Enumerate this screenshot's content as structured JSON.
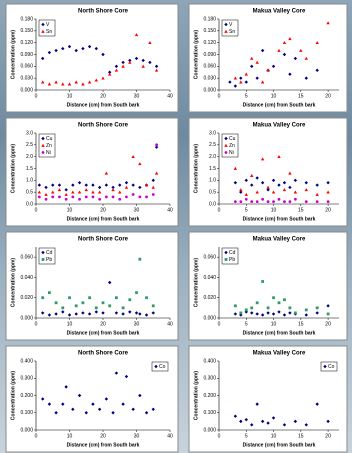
{
  "chart_data": [
    {
      "type": "scatter",
      "title": "North Shore Core",
      "x_label": "Distance (cm) from South bark",
      "y_label": "Concentration (ppm)",
      "legend": "upper left",
      "xlim": [
        0,
        40
      ],
      "xticks": [
        0,
        10,
        20,
        30,
        40
      ],
      "ylim": [
        0,
        0.18
      ],
      "yticks": [
        {
          "value": 0,
          "label": "0.000"
        },
        {
          "value": 0.03,
          "label": "0.030"
        },
        {
          "value": 0.06,
          "label": "0.060"
        },
        {
          "value": 0.09,
          "label": "0.090"
        },
        {
          "value": 0.12,
          "label": "0.120"
        },
        {
          "value": 0.15,
          "label": "0.150"
        },
        {
          "value": 0.18,
          "label": "0.180"
        }
      ],
      "series": [
        {
          "name": "V",
          "color": "#000080",
          "marker": "diamond",
          "x": [
            2,
            4,
            6,
            8,
            10,
            12,
            14,
            16,
            18,
            20,
            22,
            24,
            26,
            28,
            30,
            32,
            34,
            36
          ],
          "values": [
            0.08,
            0.095,
            0.1,
            0.105,
            0.11,
            0.1,
            0.105,
            0.11,
            0.105,
            0.09,
            0.045,
            0.06,
            0.07,
            0.075,
            0.08,
            0.075,
            0.07,
            0.06
          ]
        },
        {
          "name": "Sn",
          "color": "#ff0000",
          "marker": "triangle",
          "x": [
            2,
            4,
            6,
            8,
            10,
            12,
            14,
            16,
            18,
            20,
            22,
            24,
            26,
            28,
            30,
            32,
            34,
            36
          ],
          "values": [
            0.02,
            0.015,
            0.02,
            0.015,
            0.015,
            0.02,
            0.015,
            0.02,
            0.025,
            0.03,
            0.04,
            0.05,
            0.06,
            0.07,
            0.14,
            0.06,
            0.12,
            0.05
          ]
        }
      ]
    },
    {
      "type": "scatter",
      "title": "Makua Valley Core",
      "x_label": "Distance (cm) from South bark",
      "y_label": "Concentration (ppm)",
      "legend": "upper left",
      "xlim": [
        0,
        22
      ],
      "xticks": [
        0,
        5,
        10,
        15,
        20
      ],
      "ylim": [
        0,
        0.18
      ],
      "yticks": [
        {
          "value": 0,
          "label": "0.000"
        },
        {
          "value": 0.03,
          "label": "0.030"
        },
        {
          "value": 0.06,
          "label": "0.060"
        },
        {
          "value": 0.09,
          "label": "0.090"
        },
        {
          "value": 0.12,
          "label": "0.120"
        },
        {
          "value": 0.15,
          "label": "0.150"
        },
        {
          "value": 0.18,
          "label": "0.180"
        }
      ],
      "series": [
        {
          "name": "V",
          "color": "#000080",
          "marker": "diamond",
          "x": [
            2,
            3,
            4,
            5,
            6,
            7,
            8,
            9,
            10,
            12,
            13,
            14,
            16,
            18
          ],
          "values": [
            0.02,
            0.01,
            0.03,
            0.02,
            0.06,
            0.03,
            0.1,
            0.05,
            0.06,
            0.09,
            0.04,
            0.08,
            0.03,
            0.05
          ]
        },
        {
          "name": "Sn",
          "color": "#ff0000",
          "marker": "triangle",
          "x": [
            3,
            4,
            5,
            6,
            7,
            8,
            9,
            11,
            12,
            13,
            15,
            16,
            18,
            20
          ],
          "values": [
            0.03,
            0.02,
            0.04,
            0.08,
            0.07,
            0.02,
            0.05,
            0.1,
            0.12,
            0.13,
            0.1,
            0.08,
            0.12,
            0.17
          ]
        }
      ]
    },
    {
      "type": "scatter",
      "title": "North Shore Core",
      "x_label": "Distance (cm) from South bark",
      "y_label": "Concentration (ppm)",
      "legend": "upper left",
      "xlim": [
        0,
        40
      ],
      "xticks": [
        0,
        10,
        20,
        30,
        40
      ],
      "ylim": [
        0,
        3
      ],
      "yticks": [
        {
          "value": 0,
          "label": "0.0"
        },
        0.5,
        {
          "value": 1,
          "label": "1.0"
        },
        1.5,
        {
          "value": 2,
          "label": "2.0"
        },
        2.5,
        {
          "value": 3,
          "label": "3.0"
        }
      ],
      "series": [
        {
          "name": "Cu",
          "color": "#000080",
          "marker": "diamond",
          "x": [
            1,
            3,
            5,
            7,
            9,
            11,
            13,
            15,
            17,
            19,
            21,
            23,
            25,
            27,
            29,
            31,
            33,
            35,
            36
          ],
          "values": [
            0.8,
            0.7,
            0.8,
            0.8,
            0.6,
            0.8,
            0.9,
            0.8,
            0.8,
            0.7,
            0.8,
            0.7,
            0.8,
            0.9,
            0.8,
            0.7,
            0.8,
            1.0,
            2.4
          ]
        },
        {
          "name": "Zn",
          "color": "#ff0000",
          "marker": "triangle",
          "x": [
            1,
            3,
            5,
            7,
            9,
            11,
            13,
            15,
            17,
            19,
            21,
            23,
            25,
            27,
            29,
            31,
            33,
            35,
            36
          ],
          "values": [
            0.5,
            0.4,
            0.5,
            0.6,
            0.4,
            0.5,
            0.5,
            0.6,
            0.5,
            0.5,
            1.3,
            0.6,
            0.5,
            0.7,
            2.0,
            1.7,
            0.8,
            0.7,
            1.3
          ]
        },
        {
          "name": "Ni",
          "color": "#cc00cc",
          "marker": "circle",
          "x": [
            1,
            3,
            5,
            7,
            9,
            11,
            13,
            15,
            17,
            19,
            21,
            23,
            25,
            27,
            29,
            31,
            33,
            35,
            36
          ],
          "values": [
            0.3,
            0.2,
            0.3,
            0.3,
            0.2,
            0.3,
            0.2,
            0.3,
            0.3,
            0.2,
            0.3,
            0.3,
            0.2,
            0.3,
            0.4,
            0.3,
            0.3,
            0.4,
            2.5
          ]
        }
      ]
    },
    {
      "type": "scatter",
      "title": "Makua Valley Core",
      "x_label": "Distance (cm) from South bark",
      "y_label": "Concentration (ppm)",
      "legend": "upper left",
      "xlim": [
        0,
        22
      ],
      "xticks": [
        0,
        5,
        10,
        15,
        20
      ],
      "ylim": [
        0,
        3
      ],
      "yticks": [
        {
          "value": 0,
          "label": "0.0"
        },
        0.5,
        {
          "value": 1,
          "label": "1.0"
        },
        1.5,
        {
          "value": 2,
          "label": "2.0"
        },
        2.5,
        {
          "value": 3,
          "label": "3.0"
        }
      ],
      "series": [
        {
          "name": "Cu",
          "color": "#000080",
          "marker": "diamond",
          "x": [
            3,
            4,
            5,
            6,
            7,
            8,
            9,
            10,
            11,
            12,
            13,
            14,
            16,
            18,
            20
          ],
          "values": [
            0.9,
            0.5,
            1.0,
            0.8,
            1.1,
            0.9,
            0.6,
            1.0,
            0.8,
            0.9,
            0.7,
            1.0,
            0.9,
            0.8,
            0.9
          ]
        },
        {
          "name": "Zn",
          "color": "#ff0000",
          "marker": "triangle",
          "x": [
            3,
            4,
            5,
            6,
            7,
            8,
            9,
            10,
            11,
            12,
            13,
            14,
            16,
            18,
            20
          ],
          "values": [
            1.5,
            0.6,
            0.4,
            1.2,
            0.5,
            1.9,
            0.7,
            0.5,
            2.0,
            0.6,
            1.3,
            0.5,
            0.6,
            0.4,
            0.5
          ]
        },
        {
          "name": "Ni",
          "color": "#cc00cc",
          "marker": "circle",
          "x": [
            3,
            4,
            5,
            6,
            7,
            8,
            9,
            10,
            11,
            12,
            13,
            14,
            16,
            18,
            20
          ],
          "values": [
            0.1,
            0.1,
            0.2,
            0.1,
            0.1,
            0.2,
            0.1,
            0.1,
            0.2,
            0.1,
            0.1,
            0.2,
            0.1,
            0.1,
            0.1
          ]
        }
      ]
    },
    {
      "type": "scatter",
      "title": "North Shore Core",
      "x_label": "Distance (cm) from South bark",
      "y_label": "Concentration (ppm)",
      "legend": "upper left",
      "xlim": [
        0,
        40
      ],
      "xticks": [
        0,
        10,
        20,
        30,
        40
      ],
      "ylim": [
        0,
        0.07
      ],
      "yticks": [
        {
          "value": 0,
          "label": "0.000"
        },
        {
          "value": 0.02,
          "label": "0.020"
        },
        {
          "value": 0.04,
          "label": "0.040"
        },
        {
          "value": 0.06,
          "label": "0.060"
        }
      ],
      "series": [
        {
          "name": "Cd",
          "color": "#000080",
          "marker": "diamond",
          "x": [
            2,
            4,
            6,
            8,
            10,
            12,
            14,
            16,
            18,
            20,
            22,
            24,
            26,
            28,
            30,
            31,
            33,
            35
          ],
          "values": [
            0.005,
            0.003,
            0.004,
            0.006,
            0.003,
            0.004,
            0.005,
            0.004,
            0.006,
            0.005,
            0.035,
            0.005,
            0.004,
            0.006,
            0.005,
            0.004,
            0.003,
            0.005
          ]
        },
        {
          "name": "Pb",
          "color": "#339966",
          "marker": "square",
          "x": [
            2,
            4,
            6,
            8,
            10,
            12,
            14,
            16,
            18,
            20,
            22,
            24,
            26,
            28,
            30,
            31,
            33,
            35
          ],
          "values": [
            0.02,
            0.025,
            0.015,
            0.01,
            0.02,
            0.012,
            0.015,
            0.02,
            0.01,
            0.015,
            0.012,
            0.02,
            0.01,
            0.018,
            0.025,
            0.058,
            0.02,
            0.012
          ]
        }
      ]
    },
    {
      "type": "scatter",
      "title": "Makua Valley Core",
      "x_label": "Distance (cm) from South bark",
      "y_label": "Concentration (ppm)",
      "legend": "upper left",
      "xlim": [
        0,
        22
      ],
      "xticks": [
        0,
        5,
        10,
        15,
        20
      ],
      "ylim": [
        0,
        0.07
      ],
      "yticks": [
        {
          "value": 0,
          "label": "0.000"
        },
        {
          "value": 0.02,
          "label": "0.020"
        },
        {
          "value": 0.04,
          "label": "0.040"
        },
        {
          "value": 0.06,
          "label": "0.060"
        }
      ],
      "series": [
        {
          "name": "Cd",
          "color": "#000080",
          "marker": "diamond",
          "x": [
            3,
            4,
            5,
            6,
            7,
            8,
            9,
            10,
            11,
            12,
            13,
            14,
            16,
            18,
            20
          ],
          "values": [
            0.004,
            0.003,
            0.006,
            0.005,
            0.004,
            0.003,
            0.005,
            0.004,
            0.006,
            0.003,
            0.005,
            0.004,
            0.003,
            0.005,
            0.012
          ]
        },
        {
          "name": "Pb",
          "color": "#339966",
          "marker": "square",
          "x": [
            3,
            4,
            5,
            6,
            7,
            8,
            9,
            10,
            11,
            12,
            13,
            14,
            16,
            18,
            20
          ],
          "values": [
            0.012,
            0.005,
            0.008,
            0.01,
            0.015,
            0.036,
            0.01,
            0.02,
            0.015,
            0.018,
            0.01,
            0.005,
            0.008,
            0.01,
            0.004
          ]
        }
      ]
    },
    {
      "type": "scatter",
      "title": "North Shore Core",
      "x_label": "Distance (cm) from South bark",
      "y_label": "Concentration (ppm)",
      "legend": "upper right",
      "xlim": [
        0,
        40
      ],
      "xticks": [
        0,
        10,
        20,
        30,
        40
      ],
      "ylim": [
        0,
        0.4
      ],
      "yticks": [
        {
          "value": 0,
          "label": "0.000"
        },
        {
          "value": 0.1,
          "label": "0.100"
        },
        {
          "value": 0.2,
          "label": "0.200"
        },
        {
          "value": 0.3,
          "label": "0.300"
        },
        {
          "value": 0.4,
          "label": "0.400"
        }
      ],
      "series": [
        {
          "name": "Co",
          "color": "#000080",
          "marker": "diamond",
          "x": [
            2,
            4,
            6,
            8,
            9,
            11,
            13,
            15,
            17,
            19,
            21,
            23,
            24,
            26,
            27,
            29,
            31,
            33,
            35
          ],
          "values": [
            0.18,
            0.15,
            0.1,
            0.15,
            0.25,
            0.12,
            0.2,
            0.1,
            0.15,
            0.12,
            0.18,
            0.1,
            0.33,
            0.15,
            0.31,
            0.12,
            0.2,
            0.1,
            0.12
          ]
        }
      ]
    },
    {
      "type": "scatter",
      "title": "Makua Valley Core",
      "x_label": "Distance (cm) from South bark",
      "y_label": "Concentration (ppm)",
      "legend": "upper right",
      "xlim": [
        0,
        22
      ],
      "xticks": [
        0,
        5,
        10,
        15,
        20
      ],
      "ylim": [
        0,
        0.4
      ],
      "yticks": [
        {
          "value": 0,
          "label": "0.000"
        },
        {
          "value": 0.1,
          "label": "0.100"
        },
        {
          "value": 0.2,
          "label": "0.200"
        },
        {
          "value": 0.3,
          "label": "0.300"
        },
        {
          "value": 0.4,
          "label": "0.400"
        }
      ],
      "series": [
        {
          "name": "Co",
          "color": "#000080",
          "marker": "diamond",
          "x": [
            3,
            4,
            5,
            6,
            7,
            8,
            9,
            10,
            12,
            14,
            16,
            18,
            20
          ],
          "values": [
            0.08,
            0.05,
            0.06,
            0.03,
            0.15,
            0.05,
            0.04,
            0.07,
            0.03,
            0.05,
            0.03,
            0.15,
            0.05
          ]
        }
      ]
    }
  ]
}
